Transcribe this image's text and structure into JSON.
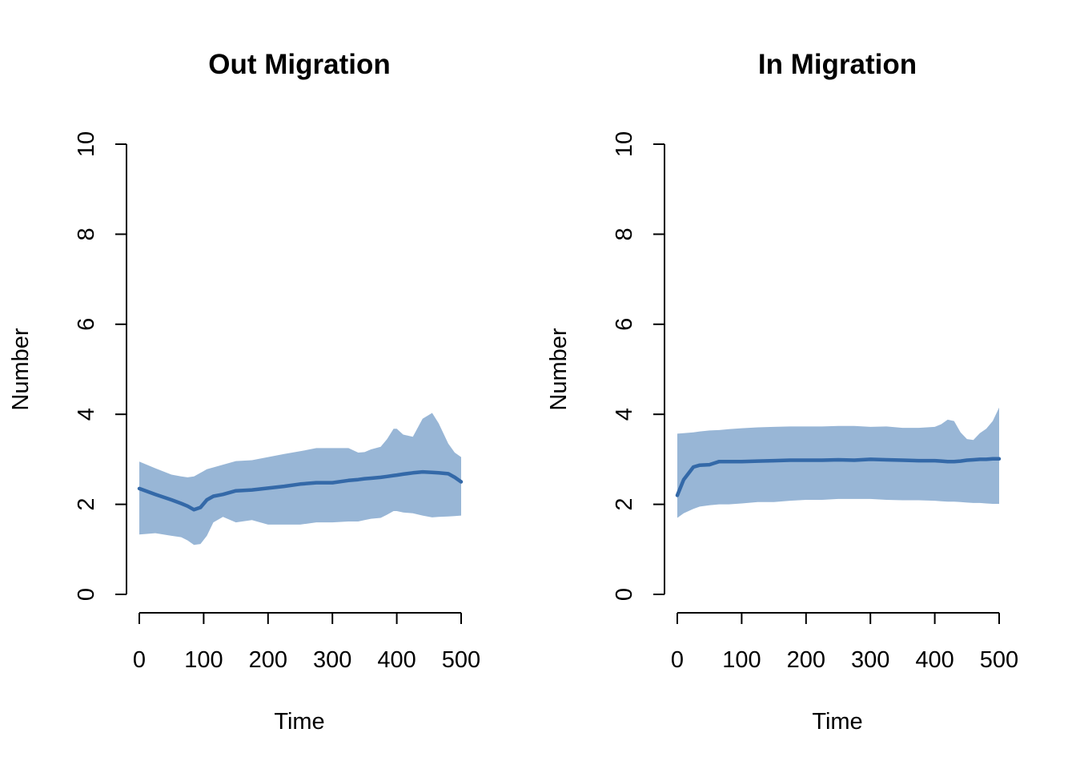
{
  "colors": {
    "band": "#98b6d6",
    "line": "#3469a8",
    "axis": "#000000"
  },
  "chart_data": [
    {
      "type": "area",
      "title": "Out Migration",
      "xlabel": "Time",
      "ylabel": "Number",
      "xlim": [
        0,
        500
      ],
      "ylim": [
        0,
        10
      ],
      "x_ticks": [
        "0",
        "100",
        "200",
        "300",
        "400",
        "500"
      ],
      "y_ticks": [
        "0",
        "2",
        "4",
        "6",
        "8",
        "10"
      ],
      "grid": false,
      "legend": "none",
      "x": [
        0,
        25,
        50,
        65,
        75,
        85,
        95,
        105,
        115,
        130,
        150,
        175,
        200,
        225,
        250,
        275,
        300,
        325,
        340,
        350,
        360,
        375,
        385,
        395,
        400,
        410,
        425,
        440,
        455,
        465,
        480,
        490,
        500
      ],
      "mean": [
        2.35,
        2.22,
        2.1,
        2.02,
        1.96,
        1.88,
        1.93,
        2.1,
        2.18,
        2.22,
        2.3,
        2.32,
        2.36,
        2.4,
        2.45,
        2.48,
        2.48,
        2.53,
        2.55,
        2.57,
        2.58,
        2.6,
        2.62,
        2.64,
        2.65,
        2.67,
        2.7,
        2.72,
        2.71,
        2.7,
        2.68,
        2.6,
        2.5
      ],
      "upper": [
        2.95,
        2.8,
        2.66,
        2.62,
        2.6,
        2.62,
        2.7,
        2.78,
        2.82,
        2.88,
        2.96,
        2.98,
        3.05,
        3.12,
        3.18,
        3.25,
        3.25,
        3.25,
        3.15,
        3.16,
        3.22,
        3.28,
        3.45,
        3.68,
        3.68,
        3.55,
        3.5,
        3.9,
        4.03,
        3.8,
        3.35,
        3.15,
        3.05
      ],
      "lower": [
        1.33,
        1.36,
        1.3,
        1.27,
        1.2,
        1.1,
        1.12,
        1.3,
        1.6,
        1.72,
        1.6,
        1.65,
        1.55,
        1.55,
        1.55,
        1.6,
        1.6,
        1.62,
        1.62,
        1.65,
        1.68,
        1.7,
        1.77,
        1.85,
        1.85,
        1.82,
        1.8,
        1.75,
        1.71,
        1.72,
        1.73,
        1.74,
        1.75
      ]
    },
    {
      "type": "area",
      "title": "In Migration",
      "xlabel": "Time",
      "ylabel": "Number",
      "xlim": [
        0,
        500
      ],
      "ylim": [
        0,
        10
      ],
      "x_ticks": [
        "0",
        "100",
        "200",
        "300",
        "400",
        "500"
      ],
      "y_ticks": [
        "0",
        "2",
        "4",
        "6",
        "8",
        "10"
      ],
      "grid": false,
      "legend": "none",
      "x": [
        0,
        10,
        25,
        35,
        50,
        65,
        80,
        100,
        125,
        150,
        175,
        200,
        225,
        250,
        275,
        300,
        325,
        350,
        375,
        400,
        410,
        420,
        430,
        440,
        450,
        460,
        470,
        480,
        490,
        500
      ],
      "mean": [
        2.2,
        2.55,
        2.83,
        2.87,
        2.88,
        2.95,
        2.95,
        2.95,
        2.96,
        2.97,
        2.98,
        2.98,
        2.98,
        2.99,
        2.98,
        3.0,
        2.99,
        2.98,
        2.97,
        2.97,
        2.96,
        2.95,
        2.95,
        2.96,
        2.98,
        2.99,
        3.0,
        3.0,
        3.01,
        3.01
      ],
      "upper": [
        3.57,
        3.58,
        3.6,
        3.62,
        3.64,
        3.65,
        3.67,
        3.69,
        3.71,
        3.72,
        3.73,
        3.73,
        3.73,
        3.74,
        3.74,
        3.72,
        3.73,
        3.7,
        3.7,
        3.72,
        3.78,
        3.88,
        3.85,
        3.6,
        3.45,
        3.43,
        3.58,
        3.68,
        3.85,
        4.15
      ],
      "lower": [
        1.7,
        1.8,
        1.9,
        1.95,
        1.98,
        2.0,
        2.0,
        2.02,
        2.05,
        2.05,
        2.08,
        2.1,
        2.1,
        2.12,
        2.12,
        2.12,
        2.1,
        2.09,
        2.09,
        2.08,
        2.07,
        2.06,
        2.06,
        2.05,
        2.04,
        2.03,
        2.03,
        2.02,
        2.01,
        2.01
      ]
    }
  ]
}
